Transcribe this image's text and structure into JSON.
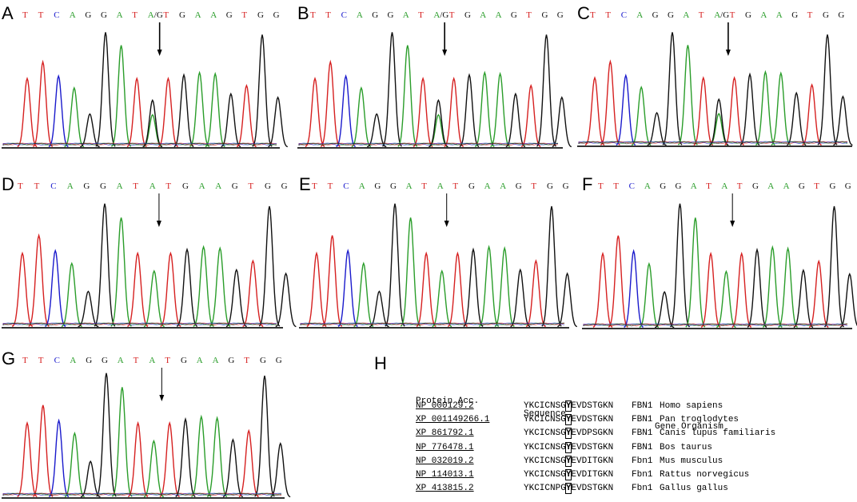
{
  "figure": {
    "colors": {
      "A": "#2a9d2a",
      "T": "#d62020",
      "C": "#1a1acc",
      "G": "#111111"
    },
    "panels": [
      {
        "label": "A",
        "bases": [
          "T",
          "T",
          "C",
          "A",
          "G",
          "G",
          "A",
          "T",
          "A/G",
          "T",
          "G",
          "A",
          "A",
          "G",
          "T",
          "G",
          "G"
        ]
      },
      {
        "label": "B",
        "bases": [
          "T",
          "T",
          "C",
          "A",
          "G",
          "G",
          "A",
          "T",
          "A/G",
          "T",
          "G",
          "A",
          "A",
          "G",
          "T",
          "G",
          "G"
        ]
      },
      {
        "label": "C",
        "bases": [
          "T",
          "T",
          "C",
          "A",
          "G",
          "G",
          "A",
          "T",
          "A/G",
          "T",
          "G",
          "A",
          "A",
          "G",
          "T",
          "G",
          "G"
        ]
      },
      {
        "label": "D",
        "bases": [
          "T",
          "T",
          "C",
          "A",
          "G",
          "G",
          "A",
          "T",
          "A",
          "T",
          "G",
          "A",
          "A",
          "G",
          "T",
          "G",
          "G"
        ]
      },
      {
        "label": "E",
        "bases": [
          "T",
          "T",
          "C",
          "A",
          "G",
          "G",
          "A",
          "T",
          "A",
          "T",
          "G",
          "A",
          "A",
          "G",
          "T",
          "G",
          "G"
        ]
      },
      {
        "label": "F",
        "bases": [
          "T",
          "T",
          "C",
          "A",
          "G",
          "G",
          "A",
          "T",
          "A",
          "T",
          "G",
          "A",
          "A",
          "G",
          "T",
          "G",
          "G"
        ]
      },
      {
        "label": "G",
        "bases": [
          "T",
          "T",
          "C",
          "A",
          "G",
          "G",
          "A",
          "T",
          "A",
          "T",
          "G",
          "A",
          "A",
          "G",
          "T",
          "G",
          "G"
        ]
      }
    ],
    "alignment": {
      "label": "H",
      "headers": {
        "acc": "Protein Acc.",
        "seq": "Sequence",
        "gene_org": "Gene Organism"
      },
      "rows": [
        {
          "acc": "NP 000129.2",
          "pre": "YKCICNSG",
          "site": "Y",
          "post": "EVDSTGKN",
          "gene": "FBN1",
          "org": "Homo sapiens"
        },
        {
          "acc": "XP 001149266.1",
          "pre": "YKCICNSG",
          "site": "Y",
          "post": "EVDSTGKN",
          "gene": "FBN1",
          "org": "Pan troglodytes"
        },
        {
          "acc": "XP 861792.1",
          "pre": "YKCICNSG",
          "site": "Y",
          "post": "EVDPSGKN",
          "gene": "FBN1",
          "org": "Canis lupus familiaris"
        },
        {
          "acc": "NP 776478.1",
          "pre": "YKCICNSG",
          "site": "Y",
          "post": "EVDSTGKN",
          "gene": "FBN1",
          "org": "Bos taurus"
        },
        {
          "acc": "NP 032019.2",
          "pre": "YKCICNSG",
          "site": "Y",
          "post": "EVDITGKN",
          "gene": "Fbn1",
          "org": "Mus musculus"
        },
        {
          "acc": "NP 114013.1",
          "pre": "YKCICNSG",
          "site": "Y",
          "post": "EVDITGKN",
          "gene": "Fbn1",
          "org": "Rattus norvegicus"
        },
        {
          "acc": "XP 413815.2",
          "pre": "YKCICNPG",
          "site": "Y",
          "post": "EVDSTGKN",
          "gene": "Fbn1",
          "org": "Gallus gallus"
        }
      ]
    }
  }
}
